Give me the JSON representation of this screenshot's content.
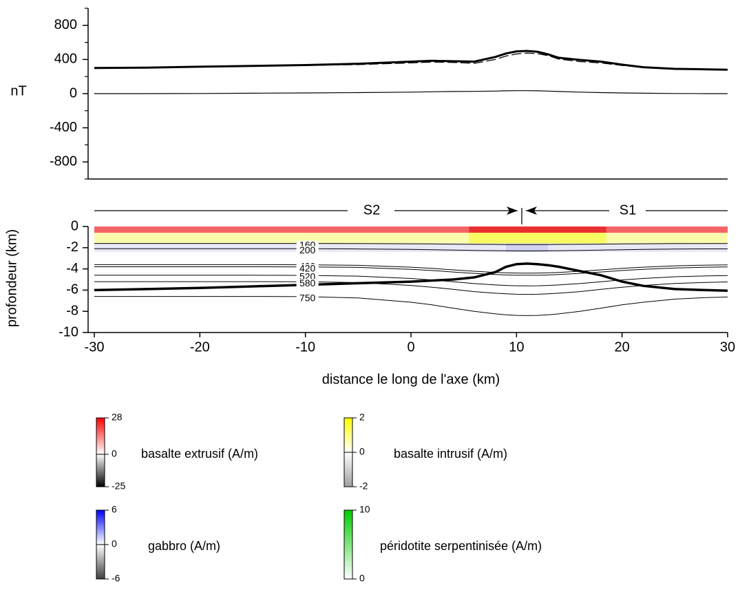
{
  "chart_data": [
    {
      "type": "line",
      "ylabel": "nT",
      "xlim": [
        -30,
        30
      ],
      "ylim": [
        -1000,
        1000
      ],
      "yticks": [
        800,
        400,
        0,
        -400,
        -800
      ],
      "yminorticks": [
        1000,
        600,
        200,
        -200,
        -600,
        -1000
      ],
      "x": [
        -30,
        -25,
        -20,
        -15,
        -10,
        -5,
        0,
        2,
        4,
        6,
        8,
        9,
        10,
        11,
        12,
        13,
        14,
        16,
        18,
        20,
        22,
        25,
        28,
        30
      ],
      "series": [
        {
          "color": "#000000",
          "line_width": 3,
          "dashed": false,
          "values": [
            300,
            305,
            315,
            325,
            335,
            350,
            375,
            385,
            380,
            375,
            430,
            470,
            495,
            500,
            490,
            460,
            420,
            395,
            375,
            340,
            310,
            290,
            285,
            280
          ]
        },
        {
          "color": "#000000",
          "line_width": 1.3,
          "dashed": true,
          "values": [
            300,
            305,
            315,
            325,
            330,
            340,
            360,
            370,
            365,
            355,
            400,
            440,
            465,
            475,
            468,
            445,
            405,
            375,
            360,
            330,
            305,
            290,
            285,
            280
          ]
        },
        {
          "color": "#000000",
          "line_width": 1.2,
          "dashed": false,
          "values": [
            0,
            0,
            2,
            5,
            8,
            12,
            18,
            22,
            25,
            27,
            30,
            33,
            35,
            35,
            33,
            30,
            25,
            18,
            12,
            8,
            5,
            2,
            0,
            0
          ]
        }
      ]
    },
    {
      "type": "section",
      "xlabel": "distance le long de l'axe (km)",
      "ylabel": "profondeur (km)",
      "xlim": [
        -30,
        30
      ],
      "ylim": [
        -10,
        0
      ],
      "xticks": [
        -30,
        -20,
        -10,
        0,
        10,
        20,
        30
      ],
      "yticks": [
        0,
        -2,
        -4,
        -6,
        -8,
        -10
      ],
      "annotations": [
        "S2",
        "S1"
      ],
      "axis_x": 10.5,
      "layers": [
        {
          "top": 0,
          "bottom": -0.6,
          "color": "#f46464",
          "core_x": [
            5.5,
            18.5
          ],
          "core_color": "#e93030"
        },
        {
          "top": -0.6,
          "bottom": -1.6,
          "color": "#fbfbae",
          "core_x": [
            5.5,
            18.5
          ],
          "core_color": "#f8f860"
        },
        {
          "top": -1.6,
          "bottom": -2.4,
          "color": "#e8e8f6",
          "core_x": [
            9,
            13
          ],
          "core_color": "#d2d2f0"
        }
      ],
      "x": [
        -30,
        -25,
        -20,
        -15,
        -10,
        -5,
        0,
        2,
        4,
        6,
        8,
        9,
        10,
        11,
        12,
        13,
        14,
        16,
        18,
        20,
        22,
        25,
        28,
        30
      ],
      "series": [
        {
          "name": "160",
          "line_width": 1,
          "values": [
            -1.6,
            -1.6,
            -1.6,
            -1.6,
            -1.6,
            -1.61,
            -1.63,
            -1.64,
            -1.66,
            -1.68,
            -1.69,
            -1.7,
            -1.7,
            -1.7,
            -1.7,
            -1.7,
            -1.69,
            -1.68,
            -1.66,
            -1.64,
            -1.63,
            -1.61,
            -1.61,
            -1.6
          ]
        },
        {
          "name": "200",
          "line_width": 1,
          "values": [
            -2.1,
            -2.1,
            -2.1,
            -2.1,
            -2.1,
            -2.12,
            -2.16,
            -2.19,
            -2.22,
            -2.26,
            -2.28,
            -2.29,
            -2.3,
            -2.3,
            -2.3,
            -2.29,
            -2.28,
            -2.26,
            -2.22,
            -2.19,
            -2.16,
            -2.13,
            -2.11,
            -2.11
          ]
        },
        {
          "name": "400",
          "line_width": 1,
          "values": [
            -3.6,
            -3.6,
            -3.6,
            -3.6,
            -3.61,
            -3.66,
            -3.84,
            -3.95,
            -4.09,
            -4.22,
            -4.33,
            -4.37,
            -4.39,
            -4.4,
            -4.39,
            -4.37,
            -4.33,
            -4.22,
            -4.09,
            -3.95,
            -3.84,
            -3.71,
            -3.64,
            -3.62
          ]
        },
        {
          "name": "420",
          "line_width": 1,
          "values": [
            -3.8,
            -3.8,
            -3.8,
            -3.8,
            -3.81,
            -3.86,
            -4.04,
            -4.15,
            -4.29,
            -4.42,
            -4.53,
            -4.57,
            -4.59,
            -4.6,
            -4.59,
            -4.57,
            -4.53,
            -4.42,
            -4.29,
            -4.15,
            -4.04,
            -3.91,
            -3.84,
            -3.82
          ]
        },
        {
          "name": "520",
          "line_width": 1,
          "values": [
            -4.6,
            -4.6,
            -4.6,
            -4.6,
            -4.61,
            -4.68,
            -4.9,
            -5.04,
            -5.21,
            -5.38,
            -5.51,
            -5.56,
            -5.59,
            -5.6,
            -5.59,
            -5.56,
            -5.51,
            -5.38,
            -5.21,
            -5.04,
            -4.9,
            -4.74,
            -4.66,
            -4.63
          ]
        },
        {
          "name": "580",
          "line_width": 1,
          "values": [
            -5.2,
            -5.2,
            -5.2,
            -5.2,
            -5.21,
            -5.29,
            -5.56,
            -5.73,
            -5.93,
            -6.14,
            -6.29,
            -6.35,
            -6.39,
            -6.4,
            -6.39,
            -6.35,
            -6.29,
            -6.14,
            -5.93,
            -5.73,
            -5.56,
            -5.37,
            -5.27,
            -5.23
          ]
        },
        {
          "name": "750",
          "line_width": 1,
          "values": [
            -6.6,
            -6.6,
            -6.6,
            -6.6,
            -6.62,
            -6.74,
            -7.14,
            -7.39,
            -7.7,
            -8.0,
            -8.24,
            -8.33,
            -8.38,
            -8.4,
            -8.38,
            -8.33,
            -8.24,
            -8.0,
            -7.7,
            -7.39,
            -7.14,
            -6.85,
            -6.7,
            -6.65
          ]
        },
        {
          "line_width": 3.5,
          "values": [
            -6,
            -5.9,
            -5.8,
            -5.65,
            -5.5,
            -5.35,
            -5.2,
            -5.1,
            -5.0,
            -4.8,
            -4.3,
            -3.8,
            -3.55,
            -3.5,
            -3.55,
            -3.65,
            -3.8,
            -4.2,
            -4.6,
            -5.2,
            -5.6,
            -5.9,
            -6.0,
            -6.05
          ]
        }
      ]
    }
  ],
  "legend": [
    {
      "name": "basalte extrusif (A/m)",
      "lim": [
        -25,
        28
      ],
      "ticks": [
        28,
        0,
        -25
      ],
      "colors": [
        "#000000",
        "#ff0000"
      ]
    },
    {
      "name": "basalte intrusif (A/m)",
      "lim": [
        -2,
        2
      ],
      "ticks": [
        2,
        0,
        -2
      ],
      "colors": [
        "#a0a0a0",
        "#ffff00"
      ]
    },
    {
      "name": "gabbro (A/m)",
      "lim": [
        -6,
        6
      ],
      "ticks": [
        6,
        0,
        -6
      ],
      "colors": [
        "#404040",
        "#0000ff"
      ]
    },
    {
      "name": "péridotite serpentinisée (A/m)",
      "lim": [
        0,
        10
      ],
      "ticks": [
        10,
        0
      ],
      "colors": [
        "#ffffff",
        "#00cc00"
      ]
    }
  ]
}
